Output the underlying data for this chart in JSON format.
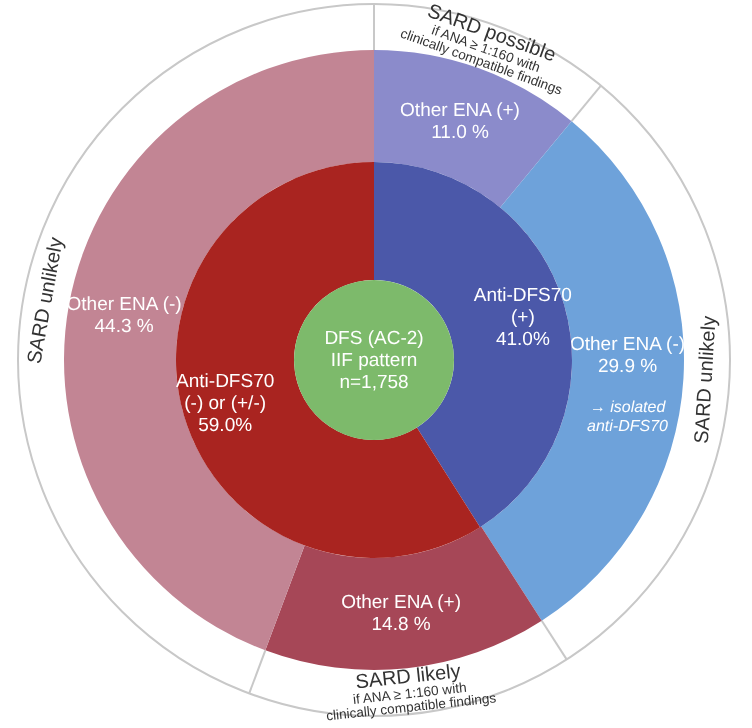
{
  "chart_data": [
    {
      "type": "donut",
      "title": "DFS (AC-2)\nIIF pattern\nn=1,758",
      "categories": [
        "Anti-DFS70\n(+)",
        "Anti-DFS70\n(-) or (+/-)"
      ],
      "values": [
        41.0,
        59.0
      ],
      "colors": [
        "#4b58a9",
        "#a92420"
      ],
      "value_labels": [
        "41.0%",
        "59.0%"
      ]
    },
    {
      "type": "donut",
      "categories": [
        "Other ENA (+)",
        "Other ENA (-)",
        "Other ENA (+)",
        "Other ENA (-)"
      ],
      "values": [
        11.0,
        29.9,
        14.8,
        44.3
      ],
      "colors": [
        "#8b8bcb",
        "#6ea2da",
        "#a64757",
        "#c28594"
      ],
      "value_labels": [
        "11.0 %",
        "29.9 %",
        "14.8 %",
        "44.3 %"
      ],
      "annotations": [
        "SARD possible\nif ANA ≥ 1:160 with\nclinically compatible findings",
        "SARD unlikely",
        "SARD likely\nif ANA ≥ 1:160 with\nclinically compatible findings",
        "SARD unlikely",
        "→ isolated\nanti-DFS70"
      ]
    }
  ]
}
